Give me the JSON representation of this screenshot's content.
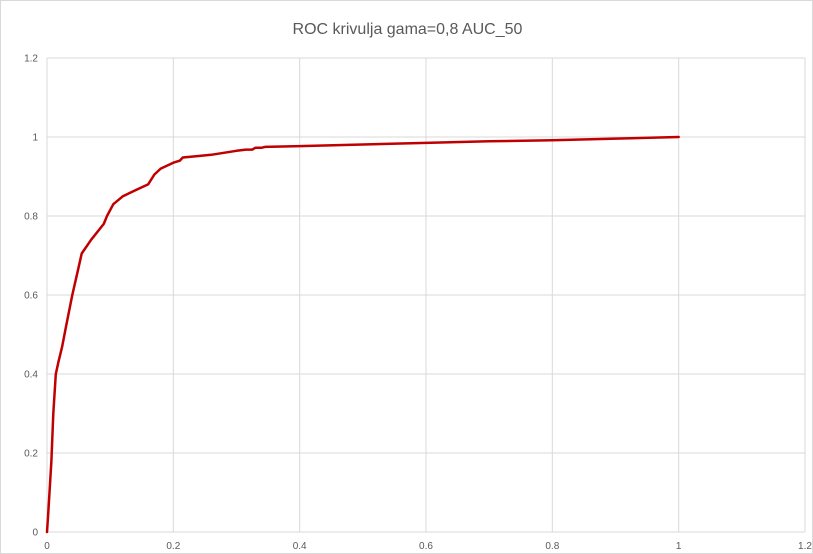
{
  "chart_data": {
    "type": "line",
    "title": "ROC krivulja gama=0,8 AUC_50",
    "xlabel": "",
    "ylabel": "",
    "xlim": [
      0,
      1.2
    ],
    "ylim": [
      0,
      1.2
    ],
    "x_ticks": [
      "0",
      "0.2",
      "0.4",
      "0.6",
      "0.8",
      "1",
      "1.2"
    ],
    "y_ticks": [
      "0",
      "0.2",
      "0.4",
      "0.6",
      "0.8",
      "1",
      "1.2"
    ],
    "grid": true,
    "legend": "none",
    "series": [
      {
        "color": "#c00000",
        "x": [
          0,
          0.002,
          0.004,
          0.007,
          0.01,
          0.014,
          0.018,
          0.024,
          0.03,
          0.04,
          0.05,
          0.055,
          0.07,
          0.09,
          0.095,
          0.105,
          0.12,
          0.14,
          0.16,
          0.17,
          0.18,
          0.2,
          0.21,
          0.215,
          0.24,
          0.26,
          0.3,
          0.315,
          0.325,
          0.33,
          0.34,
          0.345,
          0.4,
          0.5,
          0.6,
          0.7,
          0.8,
          0.9,
          1.0
        ],
        "y": [
          0,
          0.05,
          0.1,
          0.18,
          0.3,
          0.4,
          0.43,
          0.47,
          0.52,
          0.6,
          0.67,
          0.705,
          0.74,
          0.78,
          0.8,
          0.83,
          0.85,
          0.865,
          0.88,
          0.905,
          0.92,
          0.935,
          0.94,
          0.948,
          0.952,
          0.955,
          0.965,
          0.968,
          0.968,
          0.973,
          0.973,
          0.975,
          0.977,
          0.981,
          0.985,
          0.989,
          0.992,
          0.996,
          1.0
        ]
      }
    ]
  }
}
